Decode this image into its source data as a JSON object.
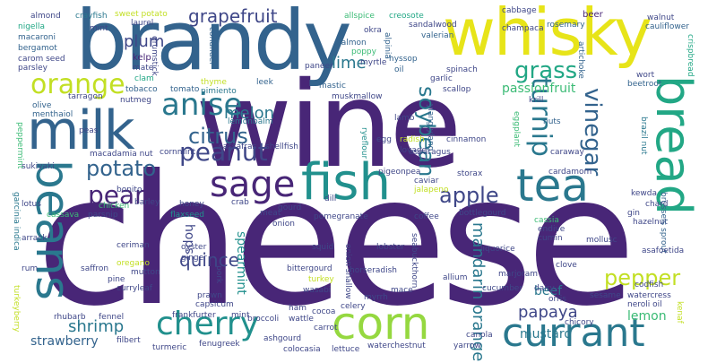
{
  "palette": {
    "deep_purple": "#482677",
    "indigo": "#3f4788",
    "blue": "#33638d",
    "teal_blue": "#2a788e",
    "teal": "#21908d",
    "green_teal": "#22a785",
    "green": "#3bbb75",
    "light_green": "#5ec962",
    "lime": "#95d840",
    "yellow_green": "#c2df23",
    "yellow": "#e7e419",
    "background": "#ffffff"
  },
  "words": [
    "cheese",
    "wine",
    "brandy",
    "whisky",
    "milk",
    "beans",
    "bread",
    "fish",
    "tea",
    "corn",
    "currant",
    "cherry",
    "sage",
    "orange",
    "anise",
    "peanut",
    "grass",
    "soybean",
    "turnip",
    "vinegar",
    "potato",
    "citrus",
    "pear",
    "apple",
    "pepper",
    "grapefruit",
    "melon",
    "quince",
    "shrimp",
    "papaya",
    "plum",
    "lime",
    "mandarin orange",
    "lemon",
    "mustard",
    "strawberry",
    "beef",
    "hops",
    "passionfruit",
    "spearmint",
    "almond",
    "nigella",
    "macaroni",
    "bergamot",
    "carom seed",
    "parsley",
    "crayfish",
    "sweet potato",
    "laurel",
    "mint",
    "kelp",
    "mate",
    "clam",
    "drumstick",
    "coriander",
    "leek",
    "mastic",
    "muskmallow",
    "salmon",
    "paneer",
    "poppy",
    "myrtle",
    "creosote",
    "sandalwood",
    "allspice",
    "okra",
    "alpinia",
    "hyssop",
    "oil",
    "valerian",
    "cabbage",
    "champaca",
    "rosemary",
    "beer",
    "artichoke",
    "walnut",
    "cauliflower",
    "crispbread",
    "wort",
    "beetroot",
    "krill",
    "brazil nut",
    "olive",
    "menthaiol",
    "peppermint",
    "tarragon",
    "tobacco",
    "tomato",
    "thyme",
    "pimiento",
    "nutmeg",
    "lamb",
    "lemonbalm",
    "ryeflour",
    "garlic",
    "scallop",
    "spinach",
    "egg",
    "radish",
    "ylang ylang",
    "cinnamon",
    "lovage",
    "eggplant",
    "nuts",
    "caraway",
    "sukiyaki",
    "peas",
    "macadamia nut",
    "cornmint",
    "sassafras",
    "shellfish",
    "pigeonpea",
    "asparagus",
    "storax",
    "cardamom",
    "kewda",
    "chard",
    "gin",
    "hazelnut",
    "bonito",
    "barley",
    "honey",
    "crab",
    "meat",
    "flaxseed",
    "chicken",
    "cassava",
    "parsnip",
    "lotus",
    "arrack",
    "garcinia indica",
    "dill",
    "caviar",
    "jalapeno",
    "gourd",
    "coffee",
    "pomegranate",
    "onion",
    "bottlegourd",
    "cassia",
    "endive",
    "cumin",
    "mollusc",
    "brussels sprout",
    "squid",
    "lobster",
    "liquorice",
    "asafoetida",
    "ceriman",
    "saffron",
    "oregano",
    "pine",
    "curryleaf",
    "mutton",
    "rum",
    "turkeyberry",
    "rhubarb",
    "oyster",
    "ginger",
    "pork",
    "bittergourd",
    "turkey",
    "horseradish",
    "onion shallow",
    "seabuckthorn",
    "wasabi",
    "allium",
    "dairy",
    "marjoram",
    "clove",
    "mace",
    "cucumber",
    "codfish",
    "watercress",
    "sesame",
    "neroli oil",
    "kenaf",
    "prawn",
    "capsicum",
    "fennel",
    "frankfurter",
    "mint",
    "broccoli",
    "wattle",
    "cocoa",
    "ham",
    "celery",
    "chicory",
    "orris",
    "yarrow",
    "filbert",
    "fenugreek",
    "ashgourd",
    "carrot",
    "colocasia",
    "lettuce",
    "waterchestnut",
    "canola",
    "turmeric",
    "myrrh"
  ]
}
